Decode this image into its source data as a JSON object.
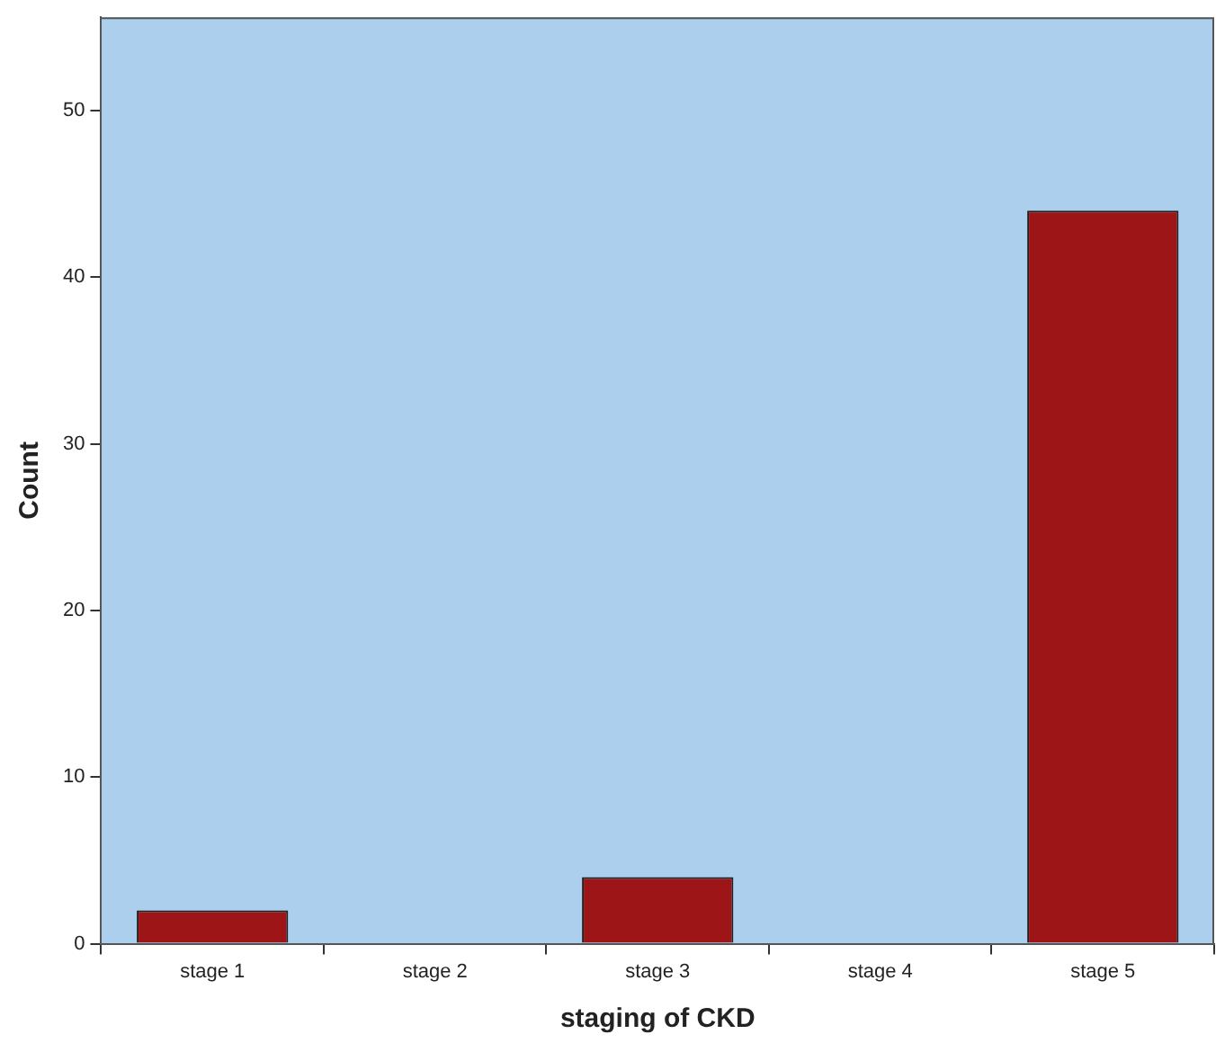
{
  "chart_data": {
    "type": "bar",
    "xlabel": "staging of CKD",
    "ylabel": "Count",
    "categories": [
      "stage 1",
      "stage 2",
      "stage 3",
      "stage 4",
      "stage 5"
    ],
    "values": [
      2,
      0,
      4,
      0,
      44
    ],
    "color": "#9e1517",
    "ylim": [
      0,
      55.6
    ],
    "yticks": [
      0,
      10,
      20,
      30,
      40,
      50
    ],
    "grid": false,
    "legend": false
  }
}
